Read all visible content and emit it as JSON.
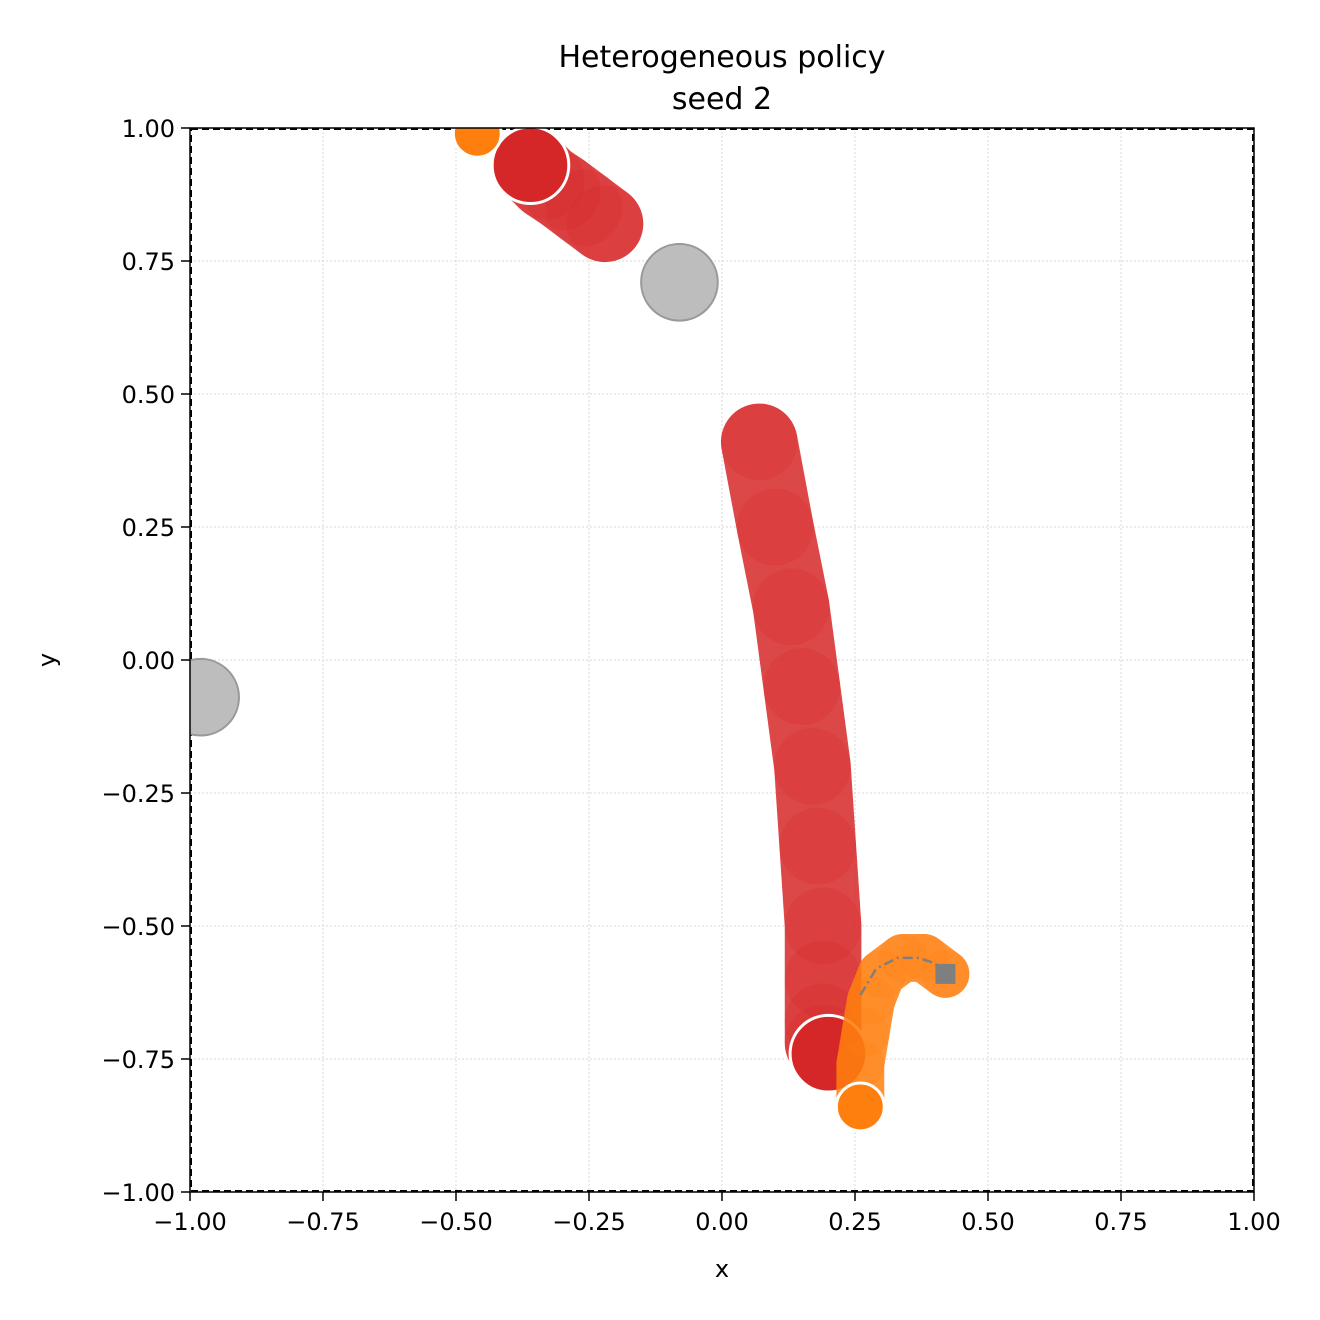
{
  "chart_data": {
    "type": "scatter",
    "title": "Heterogeneous policy",
    "subtitle": "seed 2",
    "xlabel": "x",
    "ylabel": "y",
    "xlim": [
      -1.0,
      1.0
    ],
    "ylim": [
      -1.0,
      1.0
    ],
    "xticks": [
      "−1.00",
      "−0.75",
      "−0.50",
      "−0.25",
      "0.00",
      "0.25",
      "0.50",
      "0.75",
      "1.00"
    ],
    "yticks": [
      "−1.00",
      "−0.75",
      "−0.50",
      "−0.25",
      "0.00",
      "0.25",
      "0.50",
      "0.75",
      "1.00"
    ],
    "grid": true,
    "boundary": "dashed",
    "obstacles": [
      {
        "x": -0.08,
        "y": 0.71,
        "r": 0.072
      },
      {
        "x": -0.98,
        "y": -0.07,
        "r": 0.072
      }
    ],
    "goal": {
      "x": 0.42,
      "y": -0.59
    },
    "goal_path": {
      "x": [
        0.26,
        0.29,
        0.33,
        0.37,
        0.4,
        0.42
      ],
      "y": [
        -0.63,
        -0.58,
        -0.56,
        -0.56,
        -0.57,
        -0.59
      ]
    },
    "series": [
      {
        "color": "#d62728",
        "r": 0.072,
        "x": [
          0.07,
          0.1,
          0.13,
          0.15,
          0.17,
          0.18,
          0.19,
          0.19,
          0.19,
          0.19,
          0.2
        ],
        "y": [
          0.41,
          0.25,
          0.1,
          -0.05,
          -0.2,
          -0.35,
          -0.5,
          -0.6,
          -0.68,
          -0.72,
          -0.74
        ]
      },
      {
        "color": "#d62728",
        "r": 0.072,
        "x": [
          -0.22,
          -0.26,
          -0.3,
          -0.33,
          -0.36
        ],
        "y": [
          0.82,
          0.85,
          0.88,
          0.9,
          0.93
        ]
      },
      {
        "color": "#ff7f0e",
        "r": 0.045,
        "x": [
          0.42,
          0.38,
          0.34,
          0.3,
          0.28,
          0.27,
          0.26,
          0.26
        ],
        "y": [
          -0.59,
          -0.56,
          -0.56,
          -0.59,
          -0.64,
          -0.7,
          -0.76,
          -0.84
        ]
      },
      {
        "color": "#ff7f0e",
        "r": 0.045,
        "x": [
          -0.46
        ],
        "y": [
          0.99
        ]
      }
    ]
  }
}
